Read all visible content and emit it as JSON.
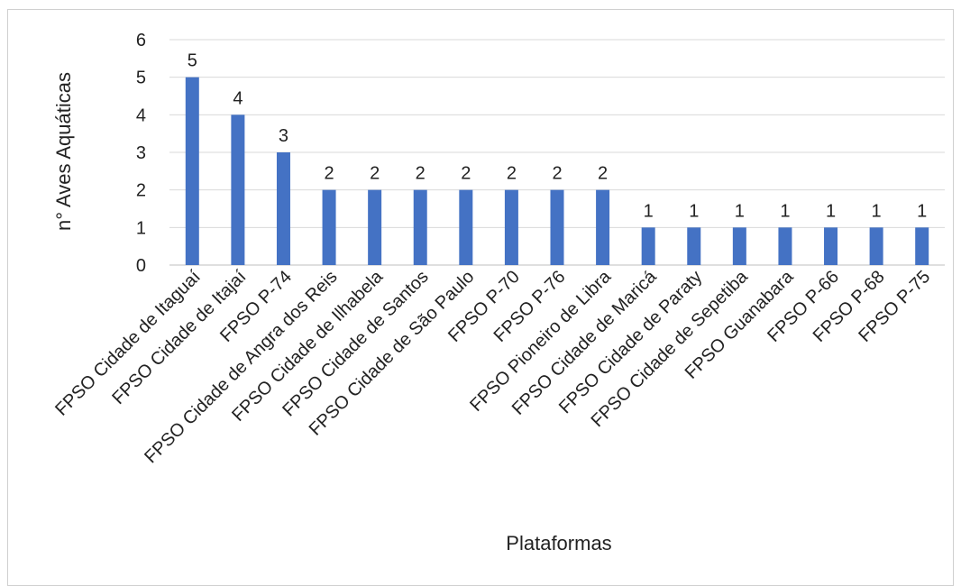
{
  "chart_data": {
    "type": "bar",
    "title": "",
    "xlabel": "Plataformas",
    "ylabel": "n° Aves Aquáticas",
    "ylim": [
      0,
      6
    ],
    "yticks": [
      0,
      1,
      2,
      3,
      4,
      5,
      6
    ],
    "grid": true,
    "legend": "none",
    "bar_color": "#4472C4",
    "categories": [
      "FPSO Cidade de Itaguaí",
      "FPSO Cidade de Itajaí",
      "FPSO P-74",
      "FPSO Cidade de Angra dos Reis",
      "FPSO Cidade de Ilhabela",
      "FPSO Cidade de Santos",
      "FPSO Cidade de São Paulo",
      "FPSO P-70",
      "FPSO P-76",
      "FPSO Pioneiro de Libra",
      "FPSO Cidade de Maricá",
      "FPSO Cidade de Paraty",
      "FPSO Cidade de Sepetiba",
      "FPSO Guanabara",
      "FPSO P-66",
      "FPSO P-68",
      "FPSO P-75"
    ],
    "values": [
      5,
      4,
      3,
      2,
      2,
      2,
      2,
      2,
      2,
      2,
      1,
      1,
      1,
      1,
      1,
      1,
      1
    ]
  }
}
